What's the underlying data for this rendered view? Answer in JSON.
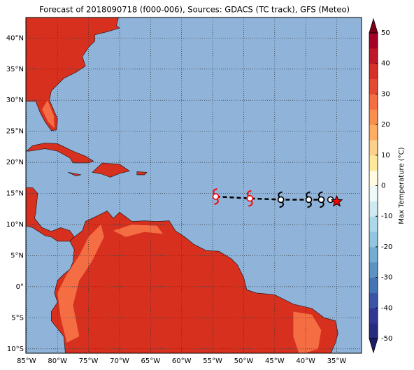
{
  "map": {
    "title": "Forecast of 2018090718 (f000-006), Sources: GDACS (TC track), GFS (Meteo)",
    "xlim": [
      -85.1,
      -31
    ],
    "ylim": [
      -10.7,
      43.3
    ],
    "xticks": [
      {
        "value": -85,
        "label": "85°W"
      },
      {
        "value": -80,
        "label": "80°W"
      },
      {
        "value": -75,
        "label": "75°W"
      },
      {
        "value": -70,
        "label": "70°W"
      },
      {
        "value": -65,
        "label": "65°W"
      },
      {
        "value": -60,
        "label": "60°W"
      },
      {
        "value": -55,
        "label": "55°W"
      },
      {
        "value": -50,
        "label": "50°W"
      },
      {
        "value": -45,
        "label": "45°W"
      },
      {
        "value": -40,
        "label": "40°W"
      },
      {
        "value": -35,
        "label": "35°W"
      }
    ],
    "yticks": [
      {
        "value": 40,
        "label": "40°N"
      },
      {
        "value": 35,
        "label": "35°N"
      },
      {
        "value": 30,
        "label": "30°N"
      },
      {
        "value": 25,
        "label": "25°N"
      },
      {
        "value": 20,
        "label": "20°N"
      },
      {
        "value": 15,
        "label": "15°N"
      },
      {
        "value": 10,
        "label": "10°N"
      },
      {
        "value": 5,
        "label": "5°N"
      },
      {
        "value": 0,
        "label": "0°"
      },
      {
        "value": -5,
        "label": "5°S"
      },
      {
        "value": -10,
        "label": "10°S"
      }
    ],
    "grid": true,
    "ocean_color": "#8fb3d9",
    "track": {
      "lon": [
        -54.5,
        -49,
        -44,
        -39.5,
        -37.5,
        -36,
        -35
      ],
      "lat": [
        14.5,
        14.2,
        14.0,
        14.0,
        14.0,
        14.0,
        13.7
      ],
      "markers": [
        "storm",
        "storm",
        "storm",
        "storm",
        "storm",
        "circle",
        "star"
      ],
      "colors": [
        "#ff0000",
        "#ff0000",
        "#000000",
        "#000000",
        "#000000",
        "#000000",
        "#ff0000"
      ]
    },
    "colorbar": {
      "label": "Max Temperature (°C)",
      "lim": [
        -50,
        50
      ],
      "ticks": [
        -50,
        -40,
        -30,
        -20,
        -10,
        0,
        10,
        20,
        30,
        40,
        50
      ],
      "colors": [
        "#262b7f",
        "#313695",
        "#3a55a6",
        "#4575b4",
        "#5d92c4",
        "#74add1",
        "#92c5de",
        "#abd9e9",
        "#cfe9f1",
        "#eef8f6",
        "#fffbe0",
        "#fee99a",
        "#fed18a",
        "#fdae61",
        "#f88e4f",
        "#f46d43",
        "#e34a33",
        "#d73027",
        "#bd1728",
        "#a50026"
      ],
      "extend_colors": [
        "#1b1f66",
        "#7a0019"
      ]
    }
  }
}
